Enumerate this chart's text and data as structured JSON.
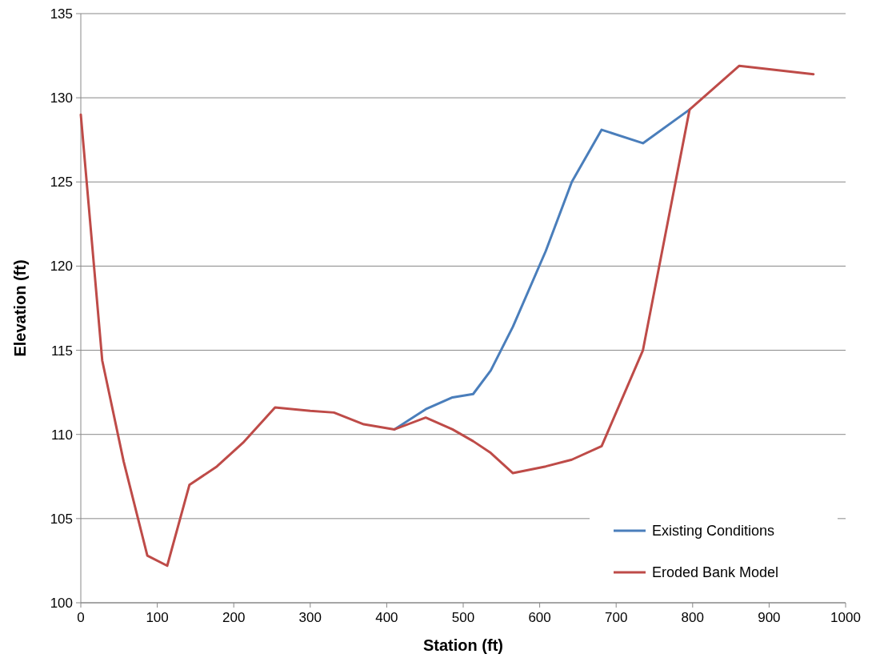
{
  "chart_data": {
    "type": "line",
    "xlabel": "Station (ft)",
    "ylabel": "Elevation (ft)",
    "xlim": [
      0,
      1000
    ],
    "xticks": [
      0,
      100,
      200,
      300,
      400,
      500,
      600,
      700,
      800,
      900,
      1000
    ],
    "ylim": [
      100,
      135
    ],
    "yticks": [
      100,
      105,
      110,
      115,
      120,
      125,
      130,
      135
    ],
    "grid": "y",
    "legend": "bottom right",
    "marker": "none",
    "line_style": "solid",
    "series": [
      {
        "name": "Existing Conditions",
        "color": "#4a7ebb",
        "x": [
          410,
          451,
          486,
          513,
          536,
          565,
          608,
          642,
          681,
          735,
          796
        ],
        "values": [
          110.3,
          111.5,
          112.2,
          112.4,
          113.8,
          116.4,
          120.9,
          125.0,
          128.1,
          127.3,
          129.3
        ]
      },
      {
        "name": "Eroded Bank Model",
        "color": "#be4b48",
        "x": [
          0,
          28,
          56,
          87,
          113,
          142,
          178,
          212,
          254,
          300,
          331,
          370,
          410,
          451,
          486,
          513,
          536,
          565,
          608,
          642,
          681,
          735,
          796,
          861,
          958
        ],
        "values": [
          129.0,
          114.4,
          108.4,
          102.8,
          102.2,
          107.0,
          108.1,
          109.5,
          111.6,
          111.4,
          111.3,
          110.6,
          110.3,
          111.0,
          110.3,
          109.6,
          108.9,
          107.7,
          108.1,
          108.5,
          109.3,
          115.0,
          129.3,
          131.9,
          131.4
        ]
      }
    ]
  }
}
